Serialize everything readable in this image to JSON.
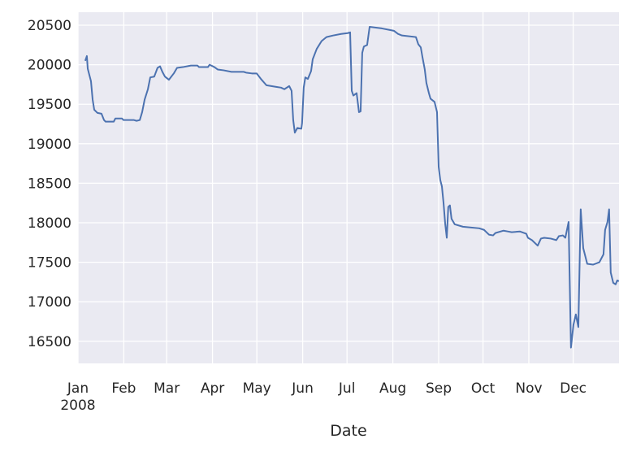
{
  "chart_data": {
    "type": "line",
    "x_label": "Date",
    "xlim": [
      0,
      366
    ],
    "ylim": [
      16220,
      20665
    ],
    "xticks": [
      {
        "value": 0,
        "label": "Jan\n2008"
      },
      {
        "value": 31,
        "label": "Feb"
      },
      {
        "value": 60,
        "label": "Mar"
      },
      {
        "value": 91,
        "label": "Apr"
      },
      {
        "value": 121,
        "label": "May"
      },
      {
        "value": 152,
        "label": "Jun"
      },
      {
        "value": 182,
        "label": "Jul"
      },
      {
        "value": 213,
        "label": "Aug"
      },
      {
        "value": 244,
        "label": "Sep"
      },
      {
        "value": 274,
        "label": "Oct"
      },
      {
        "value": 305,
        "label": "Nov"
      },
      {
        "value": 335,
        "label": "Dec"
      }
    ],
    "yticks": [
      16500,
      17000,
      17500,
      18000,
      18500,
      19000,
      19500,
      20000,
      20500
    ],
    "grid": true,
    "x": [
      4.9,
      6.0,
      6.6,
      8.8,
      9.9,
      11.0,
      13.2,
      15.9,
      17.6,
      18.7,
      24.2,
      25.3,
      29.7,
      30.8,
      37.9,
      39.6,
      41.8,
      43.4,
      45.1,
      47.3,
      48.9,
      51.6,
      53.8,
      55.5,
      57.1,
      58.8,
      61.5,
      64.8,
      67.0,
      70.9,
      76.4,
      80.8,
      81.9,
      87.9,
      89.0,
      92.3,
      94.5,
      98.4,
      103.8,
      112.1,
      113.7,
      117.6,
      120.9,
      124.2,
      127.5,
      134.1,
      137.4,
      139.6,
      142.9,
      144.5,
      145.6,
      146.7,
      148.4,
      151.1,
      151.6,
      152.7,
      153.8,
      155.5,
      157.7,
      158.8,
      161.5,
      164.8,
      168.1,
      172.5,
      178.0,
      182.4,
      184.1,
      185.2,
      186.3,
      188.5,
      190.1,
      191.2,
      192.3,
      193.4,
      195.6,
      197.3,
      201.6,
      205.5,
      211.0,
      213.7,
      216.5,
      219.2,
      228.6,
      230.2,
      231.9,
      233.0,
      234.6,
      235.7,
      237.4,
      238.5,
      241.2,
      242.9,
      244.0,
      245.1,
      246.2,
      247.3,
      248.4,
      249.5,
      250.5,
      251.6,
      252.7,
      254.9,
      260.4,
      265.9,
      271.4,
      274.7,
      275.8,
      278.0,
      280.8,
      282.4,
      287.9,
      290.7,
      293.4,
      298.9,
      303.3,
      304.4,
      307.1,
      311.0,
      313.2,
      315.4,
      319.8,
      323.6,
      325.3,
      328.0,
      329.7,
      331.9,
      333.5,
      335.2,
      336.8,
      338.5,
      340.1,
      341.8,
      344.5,
      348.4,
      352.7,
      355.5,
      356.6,
      358.2,
      359.3,
      360.4,
      362.1,
      363.7,
      364.8,
      365.9
    ],
    "series": [
      {
        "color": "#4c72b0",
        "values": [
          20050,
          20110,
          19950,
          19790,
          19560,
          19430,
          19390,
          19380,
          19300,
          19280,
          19280,
          19320,
          19320,
          19300,
          19300,
          19290,
          19300,
          19400,
          19560,
          19690,
          19840,
          19850,
          19960,
          19980,
          19910,
          19850,
          19810,
          19890,
          19960,
          19970,
          19990,
          19990,
          19970,
          19970,
          20000,
          19970,
          19940,
          19930,
          19910,
          19910,
          19900,
          19890,
          19890,
          19810,
          19740,
          19720,
          19710,
          19690,
          19730,
          19670,
          19300,
          19140,
          19200,
          19190,
          19260,
          19710,
          19840,
          19820,
          19920,
          20070,
          20200,
          20300,
          20350,
          20370,
          20390,
          20400,
          20410,
          19670,
          19610,
          19640,
          19400,
          19410,
          20150,
          20230,
          20250,
          20480,
          20470,
          20460,
          20440,
          20430,
          20390,
          20370,
          20350,
          20260,
          20220,
          20100,
          19940,
          19770,
          19640,
          19570,
          19530,
          19400,
          18710,
          18540,
          18460,
          18250,
          17990,
          17810,
          18200,
          18220,
          18050,
          17980,
          17950,
          17940,
          17930,
          17910,
          17890,
          17850,
          17840,
          17870,
          17900,
          17890,
          17880,
          17890,
          17860,
          17810,
          17780,
          17710,
          17800,
          17810,
          17800,
          17780,
          17830,
          17840,
          17810,
          18010,
          16420,
          16710,
          16840,
          16680,
          18170,
          17680,
          17480,
          17470,
          17500,
          17600,
          17910,
          18010,
          18170,
          17370,
          17240,
          17220,
          17270,
          17260
        ]
      }
    ]
  }
}
